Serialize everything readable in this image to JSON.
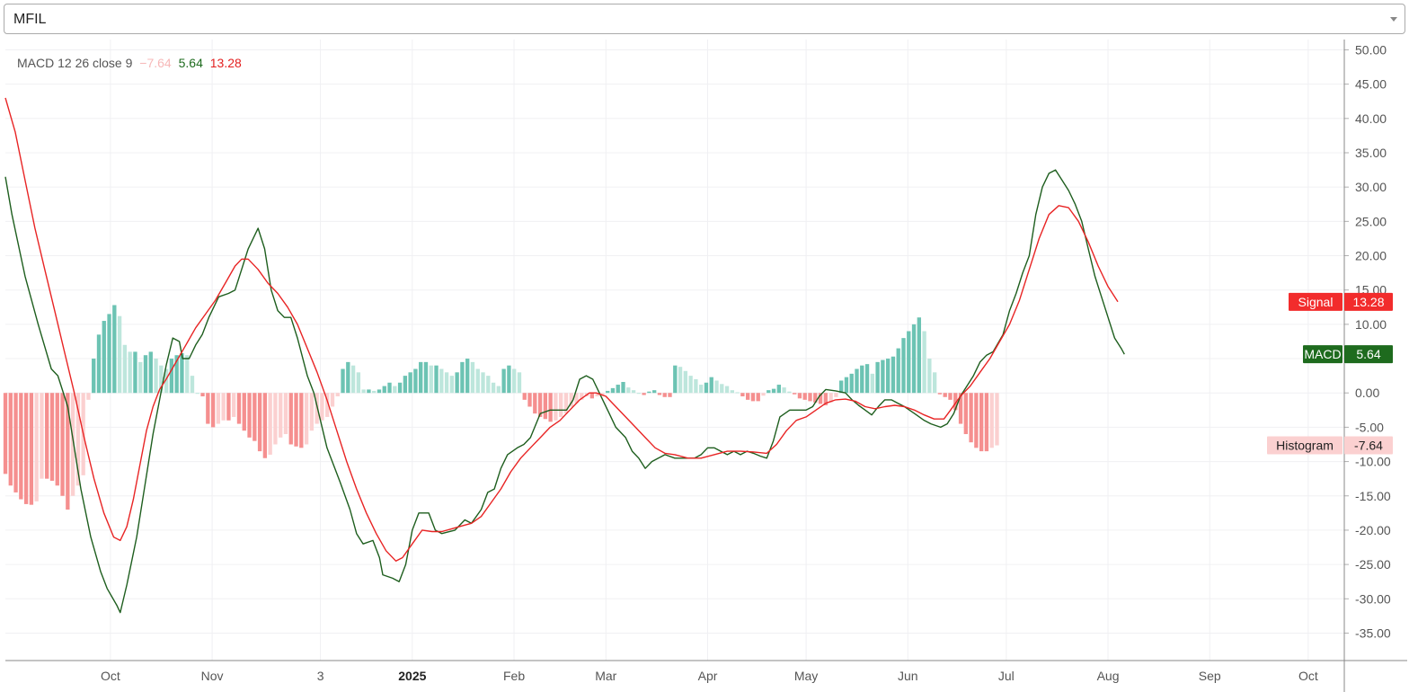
{
  "symbol_select": {
    "value": "MFIL"
  },
  "legend": {
    "name": "MACD 12 26 close 9",
    "histogram": "−7.64",
    "macd": "5.64",
    "signal": "13.28"
  },
  "price_labels": [
    {
      "name": "Signal",
      "value": "13.28",
      "color": "#f22c2c",
      "text_color": "#ffffff"
    },
    {
      "name": "MACD",
      "value": "5.64",
      "color": "#1e6b1e",
      "text_color": "#ffffff"
    },
    {
      "name": "Histogram",
      "value": "-7.64",
      "color": "#fbd0d0",
      "text_color": "#222222"
    }
  ],
  "chart_data": {
    "type": "line",
    "y_ticks": [
      "50.00",
      "45.00",
      "40.00",
      "35.00",
      "30.00",
      "25.00",
      "20.00",
      "15.00",
      "10.00",
      "5.00",
      "0.00",
      "-5.00",
      "-10.00",
      "-15.00",
      "-20.00",
      "-25.00",
      "-30.00",
      "-35.00"
    ],
    "ylim": [
      -39,
      51.5
    ],
    "x_ticks": [
      {
        "label": "Oct",
        "day": 0
      },
      {
        "label": "Nov",
        "day": 31
      },
      {
        "label": "3",
        "day": 64
      },
      {
        "label": "2025",
        "day": 92,
        "bold": true
      },
      {
        "label": "Feb",
        "day": 123
      },
      {
        "label": "Mar",
        "day": 151
      },
      {
        "label": "Apr",
        "day": 182
      },
      {
        "label": "May",
        "day": 212
      },
      {
        "label": "Jun",
        "day": 243
      },
      {
        "label": "Jul",
        "day": 273
      },
      {
        "label": "Aug",
        "day": 304
      },
      {
        "label": "Sep",
        "day": 335
      },
      {
        "label": "Oct",
        "day": 365
      }
    ],
    "xlim": [
      -32,
      376
    ],
    "colors": {
      "macd": "#1e5e1e",
      "signal": "#e82424",
      "hist_pos_strong": "#6cc3b3",
      "hist_pos_weak": "#bde6dc",
      "hist_neg_strong": "#f58f8f",
      "hist_neg_weak": "#fbd0d0"
    },
    "series": [
      {
        "name": "MACD",
        "points": [
          [
            -32,
            31.5
          ],
          [
            -30,
            26
          ],
          [
            -26,
            17
          ],
          [
            -22,
            10
          ],
          [
            -18,
            3.5
          ],
          [
            -16,
            2.5
          ],
          [
            -13,
            -2
          ],
          [
            -11,
            -8
          ],
          [
            -9,
            -14
          ],
          [
            -6,
            -21
          ],
          [
            -3,
            -26
          ],
          [
            -1,
            -28.5
          ],
          [
            2,
            -31
          ],
          [
            3,
            -32
          ],
          [
            5,
            -28
          ],
          [
            8,
            -21
          ],
          [
            10,
            -15
          ],
          [
            13,
            -6
          ],
          [
            15,
            -1
          ],
          [
            17,
            4
          ],
          [
            19,
            8
          ],
          [
            21,
            7.5
          ],
          [
            22,
            5
          ],
          [
            24,
            5
          ],
          [
            26,
            7
          ],
          [
            28,
            8.5
          ],
          [
            30,
            11
          ],
          [
            33,
            14
          ],
          [
            36,
            14.5
          ],
          [
            38,
            15
          ],
          [
            40,
            18
          ],
          [
            42,
            21
          ],
          [
            45,
            24
          ],
          [
            47,
            21
          ],
          [
            49,
            15
          ],
          [
            51,
            12
          ],
          [
            53,
            11
          ],
          [
            55,
            11
          ],
          [
            57,
            8
          ],
          [
            60,
            2.5
          ],
          [
            62,
            0
          ],
          [
            64,
            -4
          ],
          [
            66,
            -8
          ],
          [
            68,
            -10.5
          ],
          [
            70,
            -13
          ],
          [
            73,
            -17
          ],
          [
            75,
            -20.5
          ],
          [
            77,
            -22
          ],
          [
            80,
            -21.5
          ],
          [
            82,
            -24
          ],
          [
            83,
            -26.5
          ],
          [
            86,
            -27
          ],
          [
            88,
            -27.5
          ],
          [
            90,
            -25
          ],
          [
            92,
            -20
          ],
          [
            94,
            -17.5
          ],
          [
            97,
            -17.5
          ],
          [
            99,
            -20
          ],
          [
            101,
            -20.5
          ],
          [
            105,
            -20
          ],
          [
            108,
            -18.5
          ],
          [
            110,
            -19
          ],
          [
            113,
            -17
          ],
          [
            115,
            -14.5
          ],
          [
            117,
            -14
          ],
          [
            119,
            -11
          ],
          [
            121,
            -9
          ],
          [
            124,
            -8
          ],
          [
            126,
            -7.5
          ],
          [
            128,
            -6.5
          ],
          [
            131,
            -3
          ],
          [
            134,
            -2.5
          ],
          [
            136,
            -2.5
          ],
          [
            139,
            -2.5
          ],
          [
            141,
            -1
          ],
          [
            143,
            2
          ],
          [
            145,
            2.5
          ],
          [
            147,
            2
          ],
          [
            149,
            0
          ],
          [
            152,
            -3
          ],
          [
            154,
            -5
          ],
          [
            157,
            -6.5
          ],
          [
            159,
            -8.5
          ],
          [
            161,
            -9.5
          ],
          [
            163,
            -11
          ],
          [
            165,
            -10
          ],
          [
            167,
            -9.5
          ],
          [
            169,
            -9
          ],
          [
            172,
            -9.5
          ],
          [
            175,
            -9.5
          ],
          [
            178,
            -9.5
          ],
          [
            180,
            -9
          ],
          [
            182,
            -8
          ],
          [
            184,
            -8
          ],
          [
            186,
            -8.5
          ],
          [
            188,
            -9
          ],
          [
            190,
            -8.5
          ],
          [
            192,
            -9
          ],
          [
            194,
            -8.5
          ],
          [
            196,
            -8.8
          ],
          [
            198,
            -9.2
          ],
          [
            200,
            -9.5
          ],
          [
            202,
            -7
          ],
          [
            204,
            -3.5
          ],
          [
            207,
            -2.5
          ],
          [
            209,
            -2.5
          ],
          [
            212,
            -2.5
          ],
          [
            214,
            -2
          ],
          [
            216,
            -0.5
          ],
          [
            218,
            0.5
          ],
          [
            221,
            0.3
          ],
          [
            224,
            0
          ],
          [
            226,
            -1
          ],
          [
            228,
            -1.8
          ],
          [
            230,
            -2.5
          ],
          [
            232,
            -3.2
          ],
          [
            234,
            -2
          ],
          [
            236,
            -1
          ],
          [
            238,
            -1
          ],
          [
            240,
            -1.5
          ],
          [
            242,
            -2
          ],
          [
            245,
            -3
          ],
          [
            248,
            -4
          ],
          [
            250,
            -4.5
          ],
          [
            253,
            -5
          ],
          [
            255,
            -4.5
          ],
          [
            257,
            -3
          ],
          [
            259,
            -0.5
          ],
          [
            261,
            1
          ],
          [
            263,
            2.5
          ],
          [
            265,
            4.5
          ],
          [
            267,
            5.5
          ],
          [
            269,
            6
          ],
          [
            272,
            8.5
          ],
          [
            274,
            12
          ],
          [
            276,
            14.5
          ],
          [
            278,
            17.5
          ],
          [
            280,
            20
          ],
          [
            282,
            26
          ],
          [
            284,
            30
          ],
          [
            286,
            32
          ],
          [
            288,
            32.5
          ],
          [
            290,
            31
          ],
          [
            292,
            29.5
          ],
          [
            294,
            27.5
          ],
          [
            296,
            25
          ],
          [
            298,
            21
          ],
          [
            300,
            17
          ],
          [
            302,
            14
          ],
          [
            304,
            11
          ],
          [
            306,
            8
          ],
          [
            308,
            6.5
          ],
          [
            309,
            5.64
          ]
        ]
      },
      {
        "name": "Signal",
        "points": [
          [
            -32,
            43
          ],
          [
            -29,
            38
          ],
          [
            -26,
            31
          ],
          [
            -23,
            24
          ],
          [
            -20,
            18
          ],
          [
            -17,
            12
          ],
          [
            -14,
            6
          ],
          [
            -11,
            0
          ],
          [
            -8,
            -6.5
          ],
          [
            -5,
            -12.5
          ],
          [
            -2,
            -17.5
          ],
          [
            1,
            -21
          ],
          [
            3,
            -21.5
          ],
          [
            5,
            -19.5
          ],
          [
            7,
            -15.5
          ],
          [
            9,
            -10.5
          ],
          [
            11,
            -5.5
          ],
          [
            13,
            -2
          ],
          [
            15,
            0.5
          ],
          [
            17,
            2
          ],
          [
            20,
            4.5
          ],
          [
            23,
            7
          ],
          [
            26,
            9.5
          ],
          [
            29,
            11.5
          ],
          [
            32,
            13.5
          ],
          [
            35,
            16
          ],
          [
            38,
            18.5
          ],
          [
            40,
            19.5
          ],
          [
            42,
            19.5
          ],
          [
            45,
            18
          ],
          [
            48,
            16
          ],
          [
            51,
            14.5
          ],
          [
            54,
            12.5
          ],
          [
            57,
            10
          ],
          [
            60,
            6.5
          ],
          [
            63,
            3
          ],
          [
            66,
            -1
          ],
          [
            69,
            -5.5
          ],
          [
            72,
            -10
          ],
          [
            75,
            -14
          ],
          [
            78,
            -17.5
          ],
          [
            81,
            -20.5
          ],
          [
            84,
            -23
          ],
          [
            87,
            -24.5
          ],
          [
            89,
            -24
          ],
          [
            92,
            -22
          ],
          [
            95,
            -20
          ],
          [
            98,
            -20.2
          ],
          [
            101,
            -20.2
          ],
          [
            104,
            -19.8
          ],
          [
            107,
            -19.4
          ],
          [
            110,
            -19
          ],
          [
            113,
            -18
          ],
          [
            116,
            -16
          ],
          [
            119,
            -14
          ],
          [
            122,
            -11.5
          ],
          [
            125,
            -9.5
          ],
          [
            128,
            -8
          ],
          [
            131,
            -6.5
          ],
          [
            134,
            -5
          ],
          [
            137,
            -4
          ],
          [
            140,
            -2.5
          ],
          [
            143,
            -1
          ],
          [
            146,
            0
          ],
          [
            148,
            0
          ],
          [
            151,
            -0.5
          ],
          [
            154,
            -2
          ],
          [
            157,
            -3.5
          ],
          [
            160,
            -5
          ],
          [
            163,
            -6.5
          ],
          [
            166,
            -8
          ],
          [
            169,
            -8.8
          ],
          [
            172,
            -9
          ],
          [
            176,
            -9.5
          ],
          [
            180,
            -9.5
          ],
          [
            184,
            -9
          ],
          [
            188,
            -8.5
          ],
          [
            192,
            -8.5
          ],
          [
            196,
            -8.6
          ],
          [
            200,
            -8.8
          ],
          [
            203,
            -7.5
          ],
          [
            206,
            -5.5
          ],
          [
            209,
            -4
          ],
          [
            212,
            -3.5
          ],
          [
            215,
            -2.5
          ],
          [
            218,
            -1.5
          ],
          [
            221,
            -1
          ],
          [
            224,
            -0.9
          ],
          [
            227,
            -1.2
          ],
          [
            230,
            -2
          ],
          [
            233,
            -2.3
          ],
          [
            236,
            -2
          ],
          [
            239,
            -1.8
          ],
          [
            242,
            -2
          ],
          [
            245,
            -2.5
          ],
          [
            248,
            -3.2
          ],
          [
            251,
            -3.8
          ],
          [
            254,
            -3.8
          ],
          [
            256,
            -2.5
          ],
          [
            259,
            -0.5
          ],
          [
            262,
            1
          ],
          [
            265,
            3
          ],
          [
            268,
            5
          ],
          [
            271,
            7.5
          ],
          [
            274,
            10
          ],
          [
            277,
            13.5
          ],
          [
            280,
            18
          ],
          [
            283,
            22.5
          ],
          [
            286,
            26
          ],
          [
            289,
            27.3
          ],
          [
            292,
            27
          ],
          [
            295,
            25
          ],
          [
            298,
            22
          ],
          [
            301,
            18.5
          ],
          [
            304,
            15.5
          ],
          [
            307,
            13.28
          ]
        ]
      }
    ],
    "histogram": [
      -11.8,
      -13.5,
      -14.5,
      -15.5,
      -16.2,
      -16.3,
      -15.8,
      -12.5,
      -12.5,
      -12.8,
      -13.5,
      -15.0,
      -17.0,
      -15.0,
      -13.5,
      -12.0,
      -1.0,
      5.0,
      8.5,
      10.5,
      11.5,
      12.8,
      11.2,
      7.0,
      6.0,
      6.0,
      4.5,
      5.5,
      6.0,
      5.0,
      4.0,
      3.5,
      5.0,
      5.5,
      5.8,
      5.5,
      2.5,
      0.0,
      -0.5,
      -4.5,
      -5.0,
      -4.5,
      -4.0,
      -4.0,
      -3.5,
      -4.5,
      -5.5,
      -6.5,
      -7.0,
      -8.5,
      -9.5,
      -9.0,
      -7.5,
      -6.5,
      -6.0,
      -7.5,
      -7.8,
      -8.0,
      -7.5,
      -5.5,
      -4.5,
      -4.0,
      -3.5,
      -2.0,
      -0.5,
      3.5,
      4.5,
      4.0,
      3.0,
      0.5,
      0.5,
      0.3,
      0.5,
      1.0,
      1.5,
      1.0,
      1.5,
      2.5,
      3.0,
      3.5,
      4.5,
      4.5,
      4.0,
      4.0,
      3.5,
      3.0,
      2.5,
      3.0,
      4.5,
      5.0,
      4.5,
      3.5,
      3.0,
      2.5,
      1.5,
      1.0,
      3.5,
      4.0,
      3.5,
      3.0,
      -1.0,
      -2.0,
      -3.0,
      -3.5,
      -3.8,
      -4.2,
      -4.0,
      -3.5,
      -3.0,
      -2.0,
      -1.5,
      -1.0,
      -0.5,
      -0.8,
      -0.5,
      -0.3,
      0.3,
      0.7,
      1.2,
      1.6,
      0.8,
      0.4,
      0.0,
      -0.3,
      0.2,
      0.4,
      -0.3,
      -0.6,
      -0.6,
      4.0,
      3.8,
      3.2,
      2.5,
      2.0,
      1.2,
      1.5,
      2.3,
      1.8,
      1.3,
      1.0,
      0.4,
      0.1,
      -0.5,
      -1.0,
      -1.2,
      -1.2,
      -0.4,
      0.4,
      0.6,
      1.2,
      0.8,
      0.2,
      -0.2,
      -0.8,
      -1.0,
      -1.2,
      -1.4,
      -1.6,
      -1.8,
      -1.4,
      -0.6,
      1.8,
      2.3,
      2.8,
      3.5,
      4.0,
      4.2,
      2.8,
      4.5,
      4.8,
      5.0,
      5.3,
      6.5,
      8.0,
      9.0,
      10.0,
      11.0,
      9.0,
      5.0,
      3.0,
      -0.2,
      -0.6,
      -1.0,
      -2.5,
      -4.5,
      -6.0,
      -7.2,
      -8.0,
      -8.5,
      -8.5,
      -8.0,
      -7.64
    ],
    "histogram_start_day": -32,
    "histogram_step_days": 1.582
  }
}
